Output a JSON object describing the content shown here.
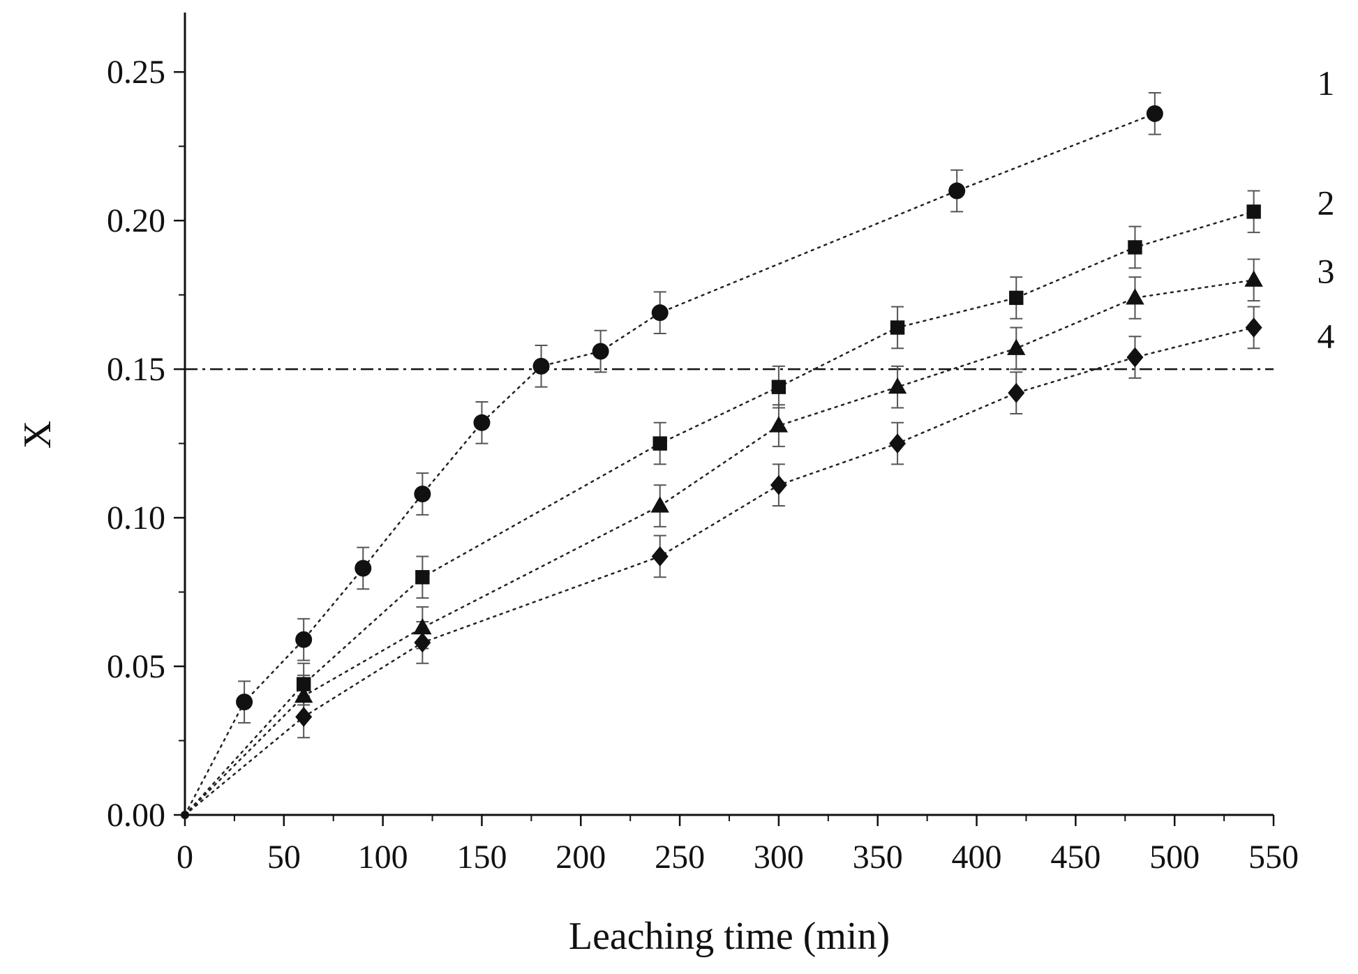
{
  "chart_data": {
    "type": "scatter",
    "title": "",
    "xlabel": "Leaching time (min)",
    "ylabel": "X",
    "xlim": [
      0,
      550
    ],
    "ylim": [
      0,
      0.27
    ],
    "x_ticks": [
      0,
      50,
      100,
      150,
      200,
      250,
      300,
      350,
      400,
      450,
      500,
      550
    ],
    "x_tick_labels": [
      "0",
      "50",
      "100",
      "150",
      "200",
      "250",
      "300",
      "350",
      "400",
      "450",
      "500",
      "550"
    ],
    "y_ticks": [
      0,
      0.05,
      0.1,
      0.15,
      0.2,
      0.25
    ],
    "y_tick_labels": [
      "0.00",
      "0.05",
      "0.10",
      "0.15",
      "0.20",
      "0.25"
    ],
    "grid": false,
    "legend": "none",
    "reference_line": {
      "y": 0.15,
      "style": "dash-dot"
    },
    "series": [
      {
        "name": "1",
        "marker": "circle",
        "x": [
          0,
          30,
          60,
          90,
          120,
          150,
          180,
          210,
          240,
          390,
          490
        ],
        "y": [
          0,
          0.038,
          0.059,
          0.083,
          0.108,
          0.132,
          0.151,
          0.156,
          0.169,
          0.21,
          0.236
        ],
        "error": [
          0,
          0.007,
          0.007,
          0.007,
          0.007,
          0.007,
          0.007,
          0.007,
          0.007,
          0.007,
          0.007
        ],
        "fit": [
          [
            0,
            0
          ],
          [
            30,
            0.038
          ],
          [
            60,
            0.059
          ],
          [
            90,
            0.083
          ],
          [
            120,
            0.108
          ],
          [
            150,
            0.132
          ],
          [
            180,
            0.151
          ],
          [
            210,
            0.156
          ],
          [
            240,
            0.169
          ],
          [
            390,
            0.21
          ],
          [
            490,
            0.236
          ]
        ]
      },
      {
        "name": "2",
        "marker": "square",
        "x": [
          60,
          120,
          240,
          300,
          360,
          420,
          480,
          540
        ],
        "y": [
          0.044,
          0.08,
          0.125,
          0.144,
          0.164,
          0.174,
          0.191,
          0.203
        ],
        "error": [
          0.007,
          0.007,
          0.007,
          0.007,
          0.007,
          0.007,
          0.007,
          0.007
        ],
        "fit": [
          [
            0,
            0
          ],
          [
            60,
            0.044
          ],
          [
            120,
            0.08
          ],
          [
            240,
            0.125
          ],
          [
            300,
            0.144
          ],
          [
            360,
            0.164
          ],
          [
            420,
            0.174
          ],
          [
            480,
            0.191
          ],
          [
            540,
            0.203
          ]
        ]
      },
      {
        "name": "3",
        "marker": "triangle",
        "x": [
          60,
          120,
          240,
          300,
          360,
          420,
          480,
          540
        ],
        "y": [
          0.04,
          0.063,
          0.104,
          0.131,
          0.144,
          0.157,
          0.174,
          0.18
        ],
        "error": [
          0.007,
          0.007,
          0.007,
          0.007,
          0.007,
          0.007,
          0.007,
          0.007
        ],
        "fit": [
          [
            0,
            0
          ],
          [
            60,
            0.04
          ],
          [
            120,
            0.063
          ],
          [
            240,
            0.104
          ],
          [
            300,
            0.131
          ],
          [
            360,
            0.144
          ],
          [
            420,
            0.157
          ],
          [
            480,
            0.174
          ],
          [
            540,
            0.18
          ]
        ]
      },
      {
        "name": "4",
        "marker": "diamond",
        "x": [
          60,
          120,
          240,
          300,
          360,
          420,
          480,
          540
        ],
        "y": [
          0.033,
          0.058,
          0.087,
          0.111,
          0.125,
          0.142,
          0.154,
          0.164
        ],
        "error": [
          0.007,
          0.007,
          0.007,
          0.007,
          0.007,
          0.007,
          0.007,
          0.007
        ],
        "fit": [
          [
            0,
            0
          ],
          [
            60,
            0.033
          ],
          [
            120,
            0.058
          ],
          [
            240,
            0.087
          ],
          [
            300,
            0.111
          ],
          [
            360,
            0.125
          ],
          [
            420,
            0.142
          ],
          [
            480,
            0.154
          ],
          [
            540,
            0.164
          ]
        ]
      }
    ]
  }
}
